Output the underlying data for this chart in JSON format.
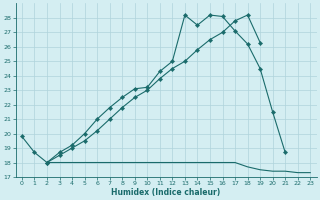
{
  "xlabel": "Humidex (Indice chaleur)",
  "background_color": "#d4eef2",
  "grid_color": "#afd4dc",
  "line_color": "#1a6b6b",
  "xlim": [
    -0.5,
    23.5
  ],
  "ylim": [
    17,
    29
  ],
  "xticks": [
    0,
    1,
    2,
    3,
    4,
    5,
    6,
    7,
    8,
    9,
    10,
    11,
    12,
    13,
    14,
    15,
    16,
    17,
    18,
    19,
    20,
    21,
    22,
    23
  ],
  "yticks": [
    17,
    18,
    19,
    20,
    21,
    22,
    23,
    24,
    25,
    26,
    27,
    28
  ],
  "line1_x": [
    0,
    1,
    2,
    3,
    4,
    5,
    6,
    7,
    8,
    9,
    10,
    11,
    12,
    13,
    14,
    15,
    16,
    17,
    18,
    19,
    20,
    21
  ],
  "line1_y": [
    19.8,
    18.7,
    18.0,
    18.7,
    19.2,
    20.0,
    21.0,
    21.8,
    22.5,
    23.1,
    23.2,
    24.3,
    25.0,
    28.2,
    27.5,
    28.2,
    28.1,
    27.1,
    26.2,
    24.5,
    21.5,
    18.7
  ],
  "line2_x": [
    2,
    3,
    4,
    5,
    6,
    7,
    8,
    9,
    10,
    11,
    12,
    13,
    14,
    15,
    16,
    17,
    18,
    19
  ],
  "line2_y": [
    18.0,
    18.5,
    19.0,
    19.5,
    20.2,
    21.0,
    21.8,
    22.5,
    23.0,
    23.8,
    24.5,
    25.0,
    25.8,
    26.5,
    27.0,
    27.8,
    28.2,
    26.3
  ],
  "line3_x": [
    2,
    3,
    4,
    5,
    6,
    7,
    8,
    9,
    10,
    11,
    12,
    13,
    14,
    15,
    16,
    17,
    18,
    19,
    20,
    21,
    22,
    23
  ],
  "line3_y": [
    18.0,
    18.0,
    18.0,
    18.0,
    18.0,
    18.0,
    18.0,
    18.0,
    18.0,
    18.0,
    18.0,
    18.0,
    18.0,
    18.0,
    18.0,
    18.0,
    17.7,
    17.5,
    17.4,
    17.4,
    17.3,
    17.3
  ]
}
